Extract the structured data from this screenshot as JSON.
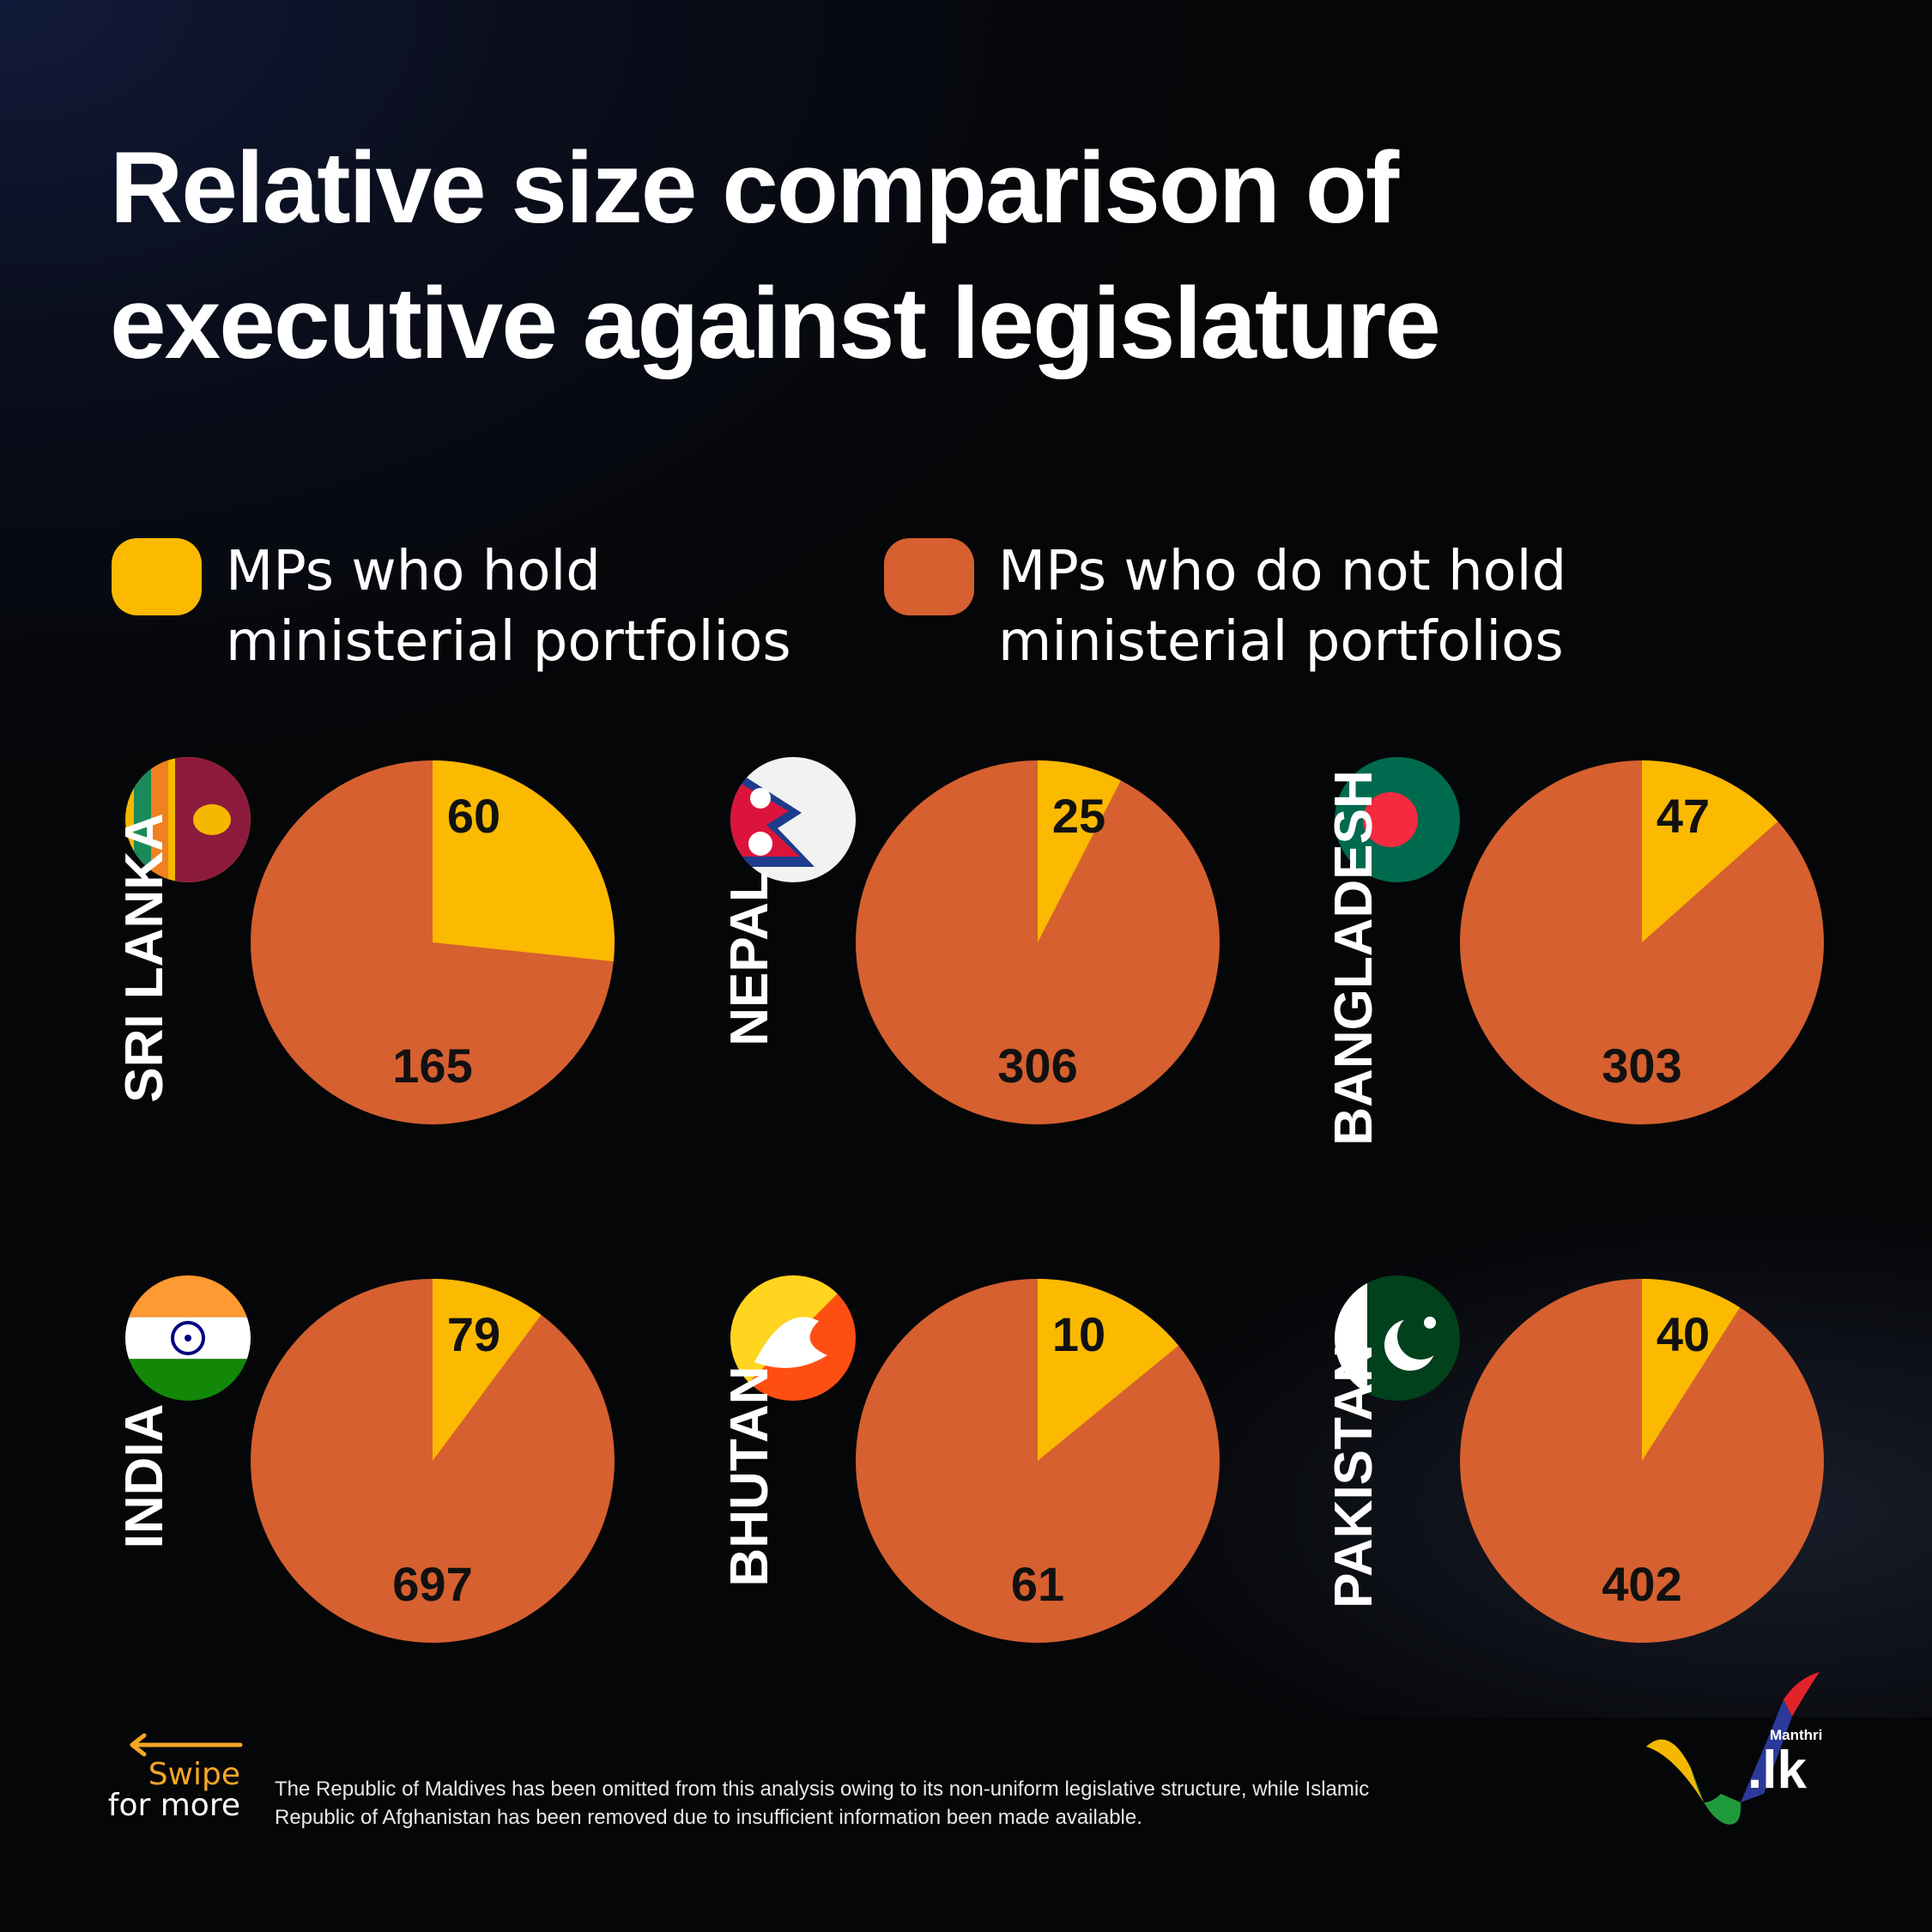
{
  "title": {
    "line1": "Relative size comparison of",
    "line2": "executive against legislature"
  },
  "legend": {
    "ministers": {
      "line1": "MPs who hold",
      "line2": "ministerial portfolios",
      "color": "#fbb900"
    },
    "non_ministers": {
      "line1": "MPs who do not hold",
      "line2": "ministerial portfolios",
      "color": "#d6602f"
    }
  },
  "chart_data": {
    "type": "pie",
    "charts": [
      {
        "country": "SRI LANKA",
        "flag": "sri-lanka-flag",
        "ministers": 60,
        "non_ministers": 165
      },
      {
        "country": "NEPAL",
        "flag": "nepal-flag",
        "ministers": 25,
        "non_ministers": 306
      },
      {
        "country": "BANGLADESH",
        "flag": "bangladesh-flag",
        "ministers": 47,
        "non_ministers": 303
      },
      {
        "country": "INDIA",
        "flag": "india-flag",
        "ministers": 79,
        "non_ministers": 697
      },
      {
        "country": "BHUTAN",
        "flag": "bhutan-flag",
        "ministers": 10,
        "non_ministers": 61
      },
      {
        "country": "PAKISTAN",
        "flag": "pakistan-flag",
        "ministers": 40,
        "non_ministers": 402
      }
    ],
    "colors": {
      "ministers": "#fbb900",
      "non_ministers": "#d6602f"
    }
  },
  "footer": {
    "swipe_line1": "Swipe",
    "swipe_line2": "for more",
    "swipe_color": "#f5a623",
    "footnote": "The Republic of Maldives has been omitted from this analysis owing to its non-uniform legislative structure, while Islamic Republic of Afghanistan has been removed due to insufficient information been made available.",
    "logo_small": "Manthri",
    "logo_big": ".lk"
  }
}
